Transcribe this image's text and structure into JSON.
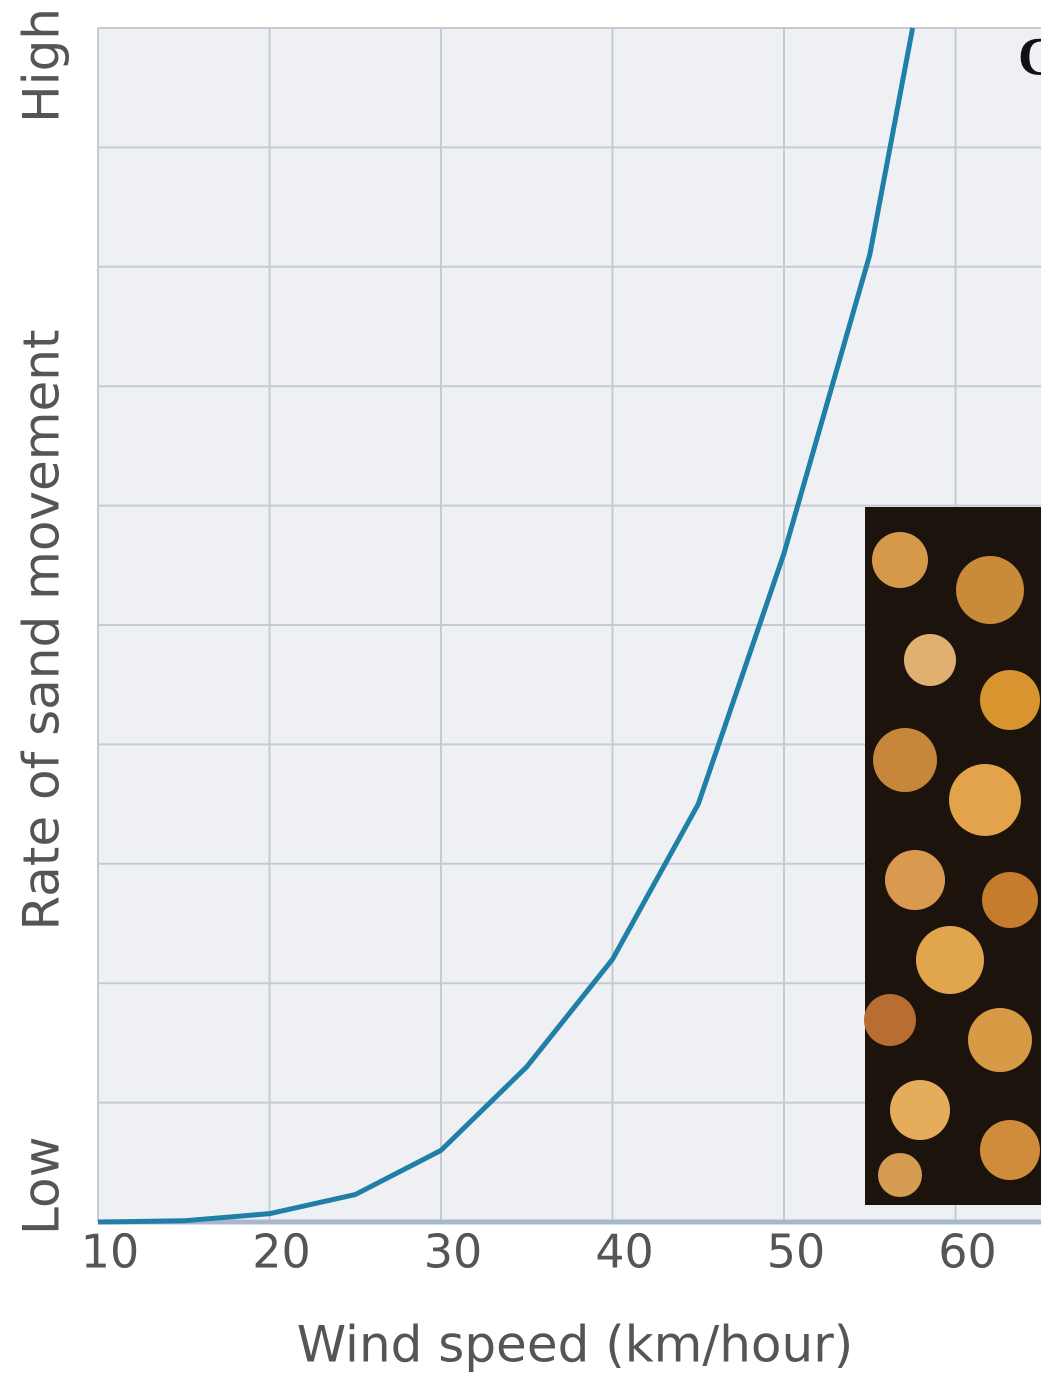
{
  "chart_data": {
    "type": "line",
    "x_label": "Wind speed (km/hour)",
    "y_label": "Rate of sand movement",
    "annotation": "C",
    "x": [
      10,
      15,
      20,
      25,
      30,
      35,
      40,
      45,
      50,
      55,
      57.5
    ],
    "series": [
      {
        "color": "#1f7fa6",
        "values": [
          0,
          0.01,
          0.07,
          0.23,
          0.6,
          1.3,
          2.2,
          3.5,
          5.6,
          8.1,
          10
        ]
      }
    ],
    "xlim": [
      10,
      65
    ],
    "xticks": [
      10,
      20,
      30,
      40,
      50,
      60
    ],
    "ylim": [
      0,
      10
    ],
    "yticks": [
      {
        "value": 0,
        "label": "Low"
      },
      {
        "value": 10,
        "label": "High"
      }
    ],
    "ygrid": [
      0,
      1,
      2,
      3,
      4,
      5,
      6,
      7,
      8,
      9,
      10
    ],
    "grid": true
  }
}
